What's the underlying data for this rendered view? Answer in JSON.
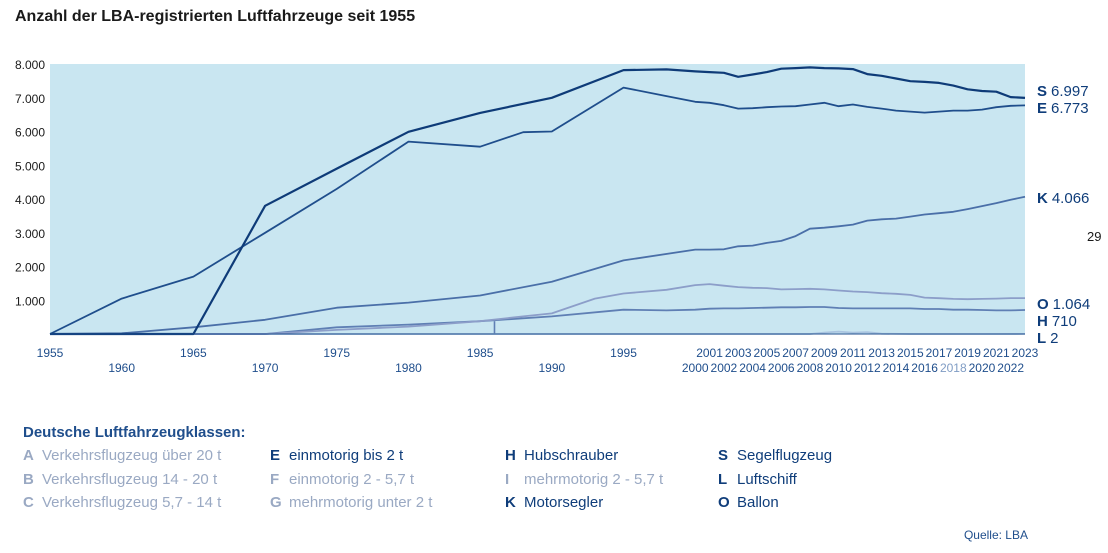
{
  "title": "Anzahl der LBA-registrierten Luftfahrzeuge seit 1955",
  "page_number": "29",
  "source": "Quelle: LBA",
  "legend_title": "Deutsche Luftfahrzeugklassen:",
  "legend": [
    {
      "code": "A",
      "label": "Verkehrsflugzeug über 20 t",
      "style": "pale"
    },
    {
      "code": "B",
      "label": "Verkehrsflugzeug 14 - 20 t",
      "style": "pale"
    },
    {
      "code": "C",
      "label": "Verkehrsflugzeug 5,7 - 14 t",
      "style": "pale"
    },
    {
      "code": "E",
      "label": "einmotorig bis 2 t",
      "style": "dark"
    },
    {
      "code": "F",
      "label": "einmotorig 2 - 5,7 t",
      "style": "pale"
    },
    {
      "code": "G",
      "label": "mehrmotorig unter 2 t",
      "style": "pale"
    },
    {
      "code": "H",
      "label": "Hubschrauber",
      "style": "dark"
    },
    {
      "code": "I",
      "label": "mehrmotorig 2 - 5,7 t",
      "style": "pale"
    },
    {
      "code": "K",
      "label": "Motorsegler",
      "style": "dark"
    },
    {
      "code": "S",
      "label": "Segelflugzeug",
      "style": "dark"
    },
    {
      "code": "L",
      "label": "Luftschiff",
      "style": "dark"
    },
    {
      "code": "O",
      "label": "Ballon",
      "style": "dark"
    }
  ],
  "chart_data": {
    "type": "line",
    "title": "Anzahl der LBA-registrierten Luftfahrzeuge seit 1955",
    "xlim": [
      1955,
      2023
    ],
    "ylim": [
      0,
      8000
    ],
    "yticks": [
      {
        "value": 1000,
        "label": "1.000"
      },
      {
        "value": 2000,
        "label": "2.000"
      },
      {
        "value": 3000,
        "label": "3.000"
      },
      {
        "value": 4000,
        "label": "4.000"
      },
      {
        "value": 5000,
        "label": "5.000"
      },
      {
        "value": 6000,
        "label": "6.000"
      },
      {
        "value": 7000,
        "label": "7.000"
      },
      {
        "value": 8000,
        "label": "8.000"
      }
    ],
    "xticks_upper": [
      1955,
      1965,
      1975,
      1985,
      1995,
      2001,
      2003,
      2005,
      2007,
      2009,
      2011,
      2013,
      2015,
      2017,
      2019,
      2021,
      2023
    ],
    "xticks_lower": [
      1960,
      1970,
      1980,
      1990,
      2000,
      2002,
      2004,
      2006,
      2008,
      2010,
      2012,
      2014,
      2016,
      2018,
      2020,
      2022
    ],
    "grid": false,
    "plot_background": "#c9e6f1",
    "series": [
      {
        "name": "S",
        "end_label": "6.997",
        "color": "#0e3b78",
        "width": 2.2,
        "x": [
          1955,
          1960,
          1965,
          1970,
          1975,
          1980,
          1985,
          1990,
          1995,
          1998,
          2000,
          2001,
          2002,
          2003,
          2004,
          2005,
          2006,
          2007,
          2008,
          2009,
          2010,
          2011,
          2012,
          2013,
          2014,
          2015,
          2016,
          2017,
          2018,
          2019,
          2020,
          2021,
          2022,
          2023
        ],
        "y": [
          0,
          0,
          0,
          3800,
          4900,
          5990,
          6550,
          7000,
          7820,
          7840,
          7780,
          7760,
          7740,
          7620,
          7690,
          7760,
          7860,
          7880,
          7900,
          7880,
          7870,
          7850,
          7700,
          7650,
          7570,
          7490,
          7470,
          7440,
          7360,
          7250,
          7200,
          7180,
          7020,
          6997
        ]
      },
      {
        "name": "E",
        "end_label": "6.773",
        "color": "#1f4e8c",
        "width": 1.8,
        "x": [
          1955,
          1960,
          1965,
          1970,
          1975,
          1980,
          1985,
          1988,
          1990,
          1995,
          1998,
          2000,
          2001,
          2002,
          2003,
          2004,
          2005,
          2006,
          2007,
          2008,
          2009,
          2010,
          2011,
          2012,
          2013,
          2014,
          2015,
          2016,
          2017,
          2018,
          2019,
          2020,
          2021,
          2022,
          2023
        ],
        "y": [
          0,
          1050,
          1700,
          3000,
          4300,
          5700,
          5550,
          5980,
          6000,
          7300,
          7050,
          6880,
          6850,
          6780,
          6680,
          6690,
          6720,
          6740,
          6750,
          6800,
          6850,
          6750,
          6800,
          6730,
          6680,
          6620,
          6590,
          6560,
          6590,
          6620,
          6620,
          6650,
          6720,
          6760,
          6773
        ]
      },
      {
        "name": "K",
        "end_label": "4.066",
        "color": "#4a6fa8",
        "width": 1.8,
        "x": [
          1955,
          1960,
          1965,
          1970,
          1975,
          1980,
          1985,
          1990,
          1995,
          2000,
          2001,
          2002,
          2003,
          2004,
          2005,
          2006,
          2007,
          2008,
          2009,
          2010,
          2011,
          2012,
          2013,
          2014,
          2015,
          2016,
          2017,
          2018,
          2019,
          2020,
          2021,
          2022,
          2023
        ],
        "y": [
          0,
          20,
          200,
          420,
          780,
          930,
          1140,
          1550,
          2180,
          2500,
          2500,
          2510,
          2600,
          2620,
          2700,
          2760,
          2900,
          3120,
          3150,
          3190,
          3240,
          3360,
          3400,
          3420,
          3480,
          3540,
          3580,
          3620,
          3700,
          3790,
          3880,
          3980,
          4066
        ]
      },
      {
        "name": "O",
        "end_label": "1.064",
        "color": "#8c9ec9",
        "width": 1.8,
        "x": [
          1955,
          1960,
          1965,
          1970,
          1975,
          1980,
          1985,
          1988,
          1990,
          1993,
          1995,
          1998,
          2000,
          2001,
          2002,
          2003,
          2004,
          2005,
          2006,
          2007,
          2008,
          2009,
          2010,
          2011,
          2012,
          2013,
          2014,
          2015,
          2016,
          2017,
          2018,
          2019,
          2020,
          2021,
          2022,
          2023
        ],
        "y": [
          0,
          0,
          0,
          0,
          120,
          220,
          380,
          520,
          610,
          1050,
          1200,
          1310,
          1450,
          1480,
          1430,
          1390,
          1370,
          1360,
          1320,
          1330,
          1340,
          1320,
          1290,
          1260,
          1240,
          1210,
          1190,
          1160,
          1080,
          1060,
          1040,
          1030,
          1040,
          1050,
          1064,
          1064
        ]
      },
      {
        "name": "H",
        "end_label": "710",
        "color": "#5f7fb4",
        "width": 1.8,
        "x": [
          1955,
          1960,
          1965,
          1970,
          1975,
          1980,
          1985,
          1990,
          1995,
          1998,
          2000,
          2001,
          2002,
          2003,
          2004,
          2005,
          2006,
          2007,
          2008,
          2009,
          2010,
          2011,
          2012,
          2013,
          2014,
          2015,
          2016,
          2017,
          2018,
          2019,
          2020,
          2021,
          2022,
          2023
        ],
        "y": [
          0,
          0,
          0,
          0,
          200,
          280,
          380,
          520,
          720,
          700,
          720,
          750,
          760,
          760,
          770,
          780,
          790,
          790,
          800,
          800,
          770,
          760,
          760,
          760,
          760,
          760,
          740,
          740,
          720,
          720,
          710,
          700,
          700,
          710
        ]
      },
      {
        "name": "L",
        "end_label": "2",
        "color": "#a9c4e0",
        "width": 1.8,
        "x": [
          1955,
          1970,
          1985,
          1990,
          2000,
          2005,
          2008,
          2009,
          2010,
          2011,
          2012,
          2013,
          2015,
          2020,
          2023
        ],
        "y": [
          0,
          0,
          0,
          0,
          0,
          0,
          0,
          40,
          70,
          40,
          55,
          10,
          0,
          0,
          2
        ]
      }
    ],
    "marker_line": {
      "x": 1986,
      "from": 0,
      "to": 380,
      "color": "#5f7fb4"
    }
  }
}
